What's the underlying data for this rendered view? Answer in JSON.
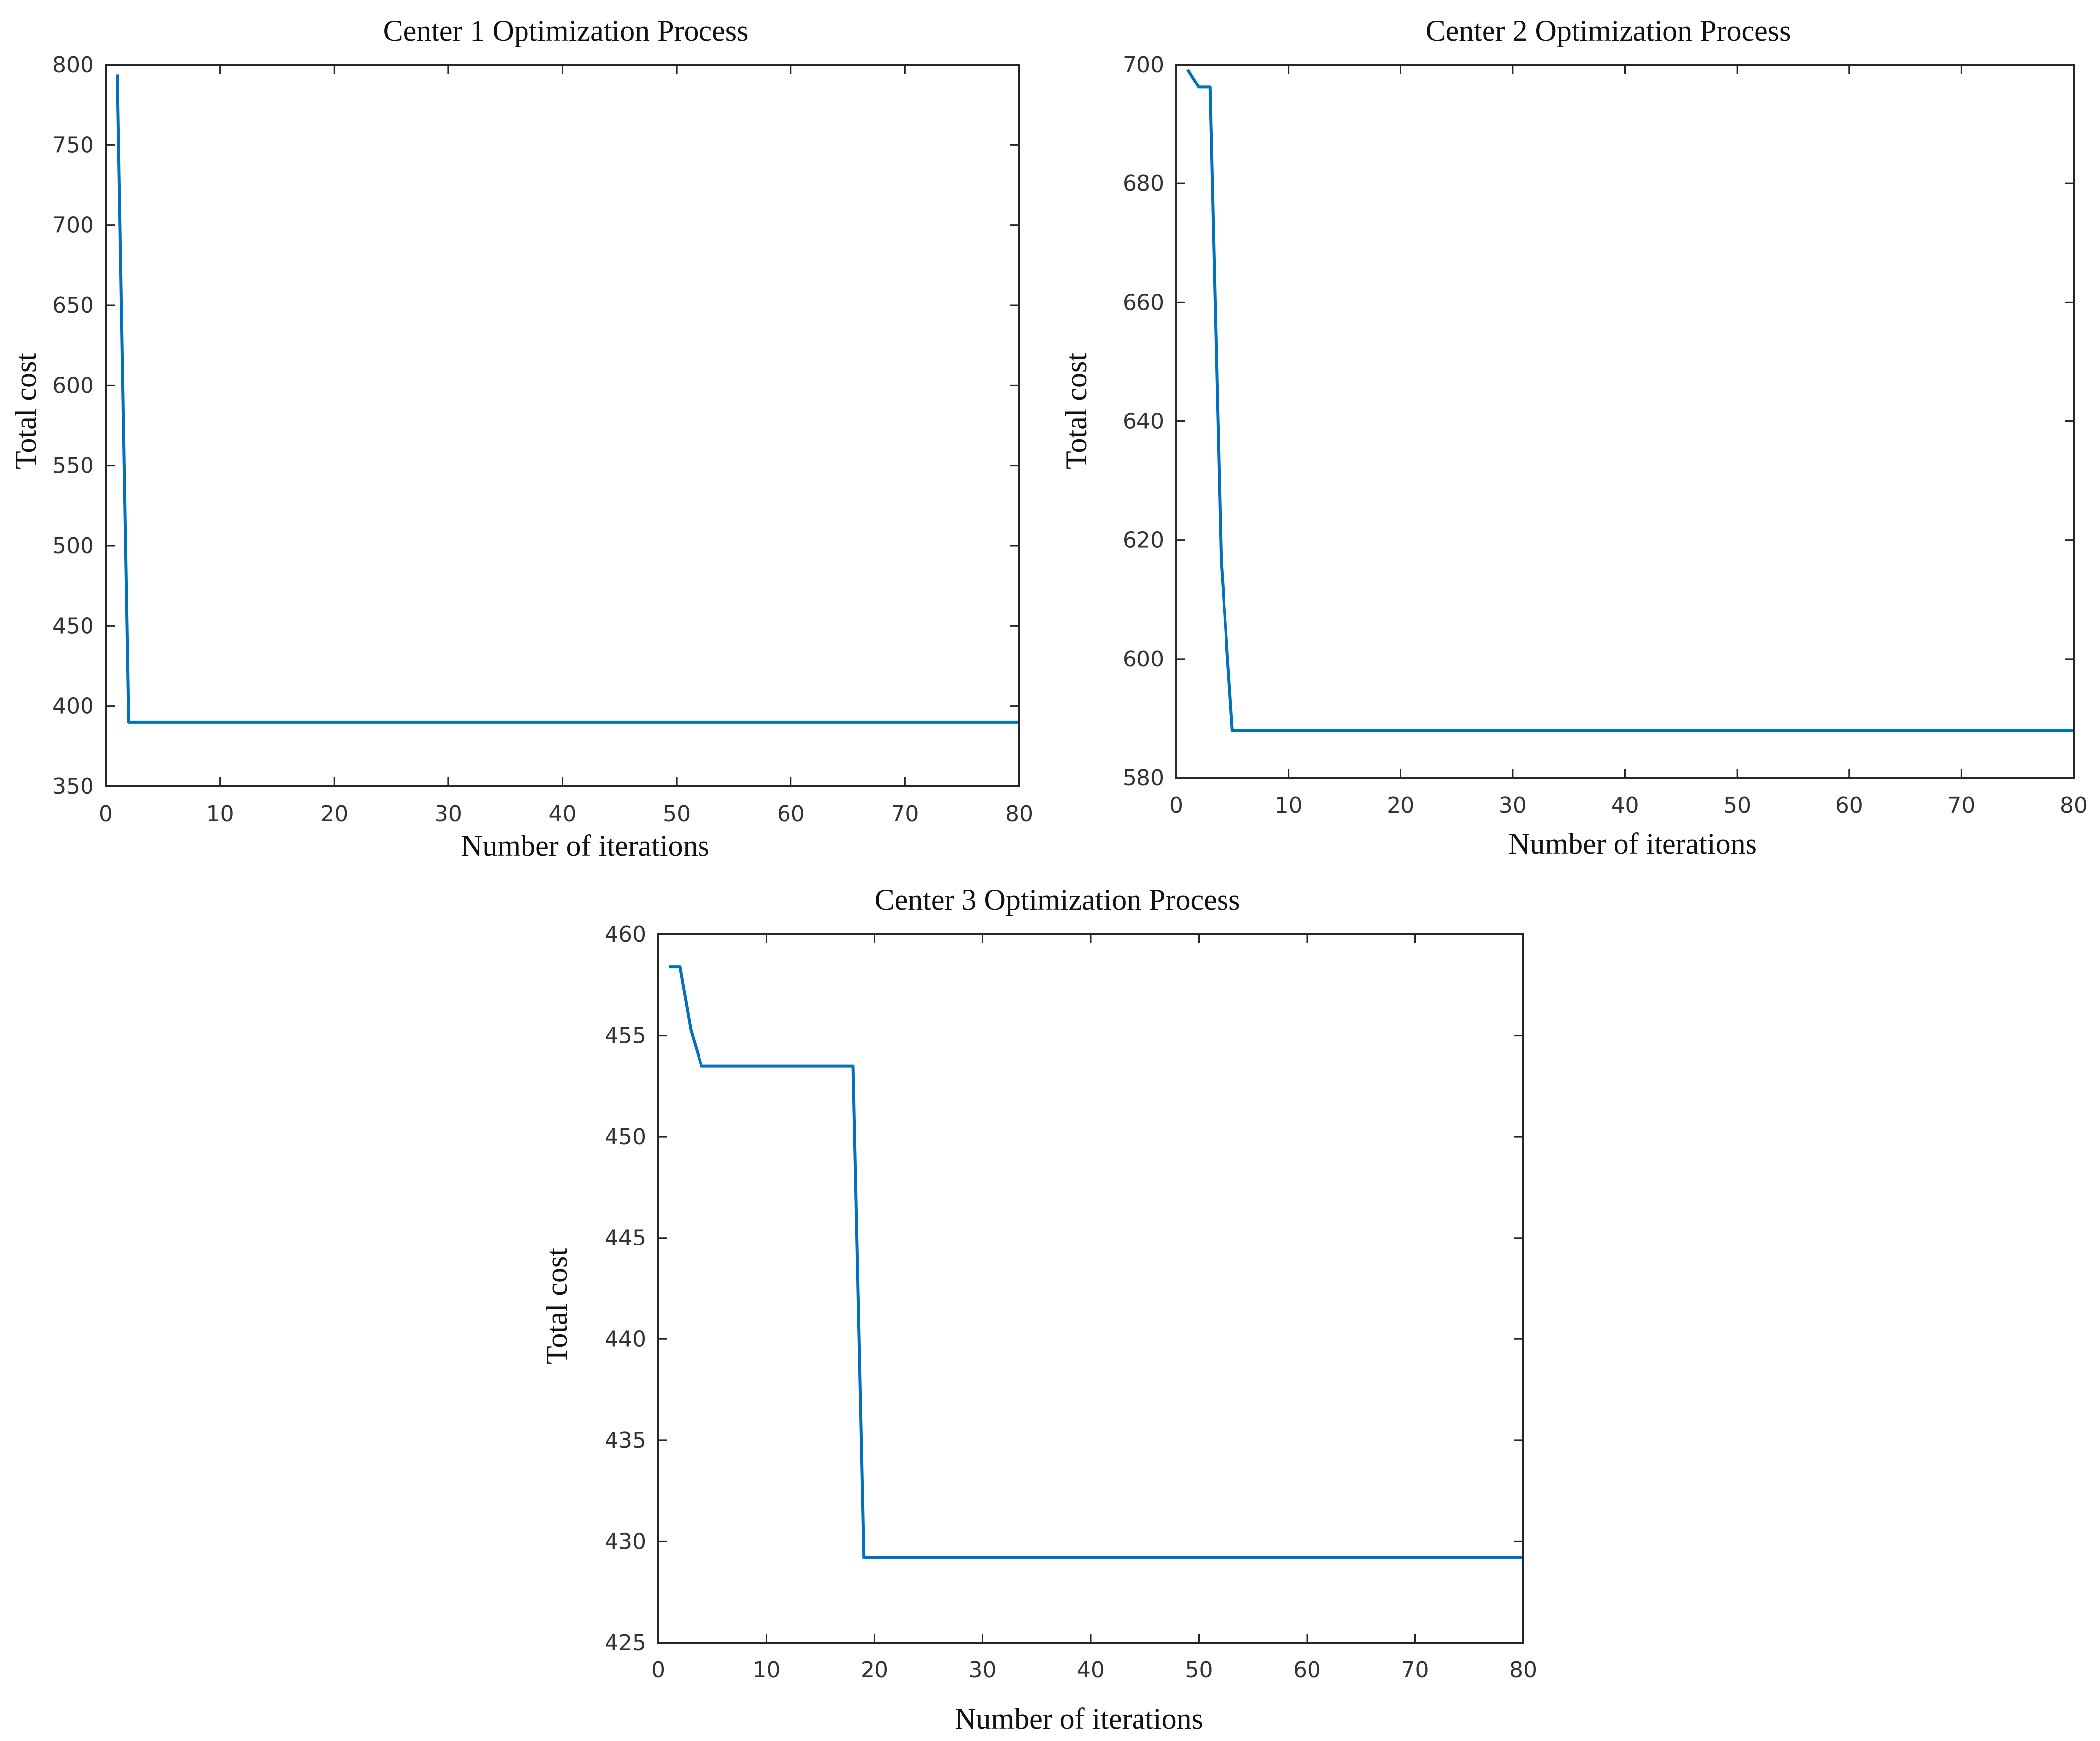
{
  "chart_data": [
    {
      "type": "line",
      "title": "Center 1 Optimization Process",
      "xlabel": "Number of iterations",
      "ylabel": "Total cost",
      "xlim": [
        0,
        80
      ],
      "ylim": [
        350,
        800
      ],
      "xticks": [
        0,
        10,
        20,
        30,
        40,
        50,
        60,
        70,
        80
      ],
      "yticks": [
        350,
        400,
        450,
        500,
        550,
        600,
        650,
        700,
        750,
        800
      ],
      "grid": false,
      "series": [
        {
          "name": "Total cost",
          "color": "#0072BD",
          "x": [
            1,
            2,
            3,
            80
          ],
          "y": [
            794,
            390,
            390,
            390
          ]
        }
      ]
    },
    {
      "type": "line",
      "title": "Center 2 Optimization Process",
      "xlabel": "Number of iterations",
      "ylabel": "Total cost",
      "xlim": [
        0,
        80
      ],
      "ylim": [
        580,
        700
      ],
      "xticks": [
        0,
        10,
        20,
        30,
        40,
        50,
        60,
        70,
        80
      ],
      "yticks": [
        580,
        600,
        620,
        640,
        660,
        680,
        700
      ],
      "grid": false,
      "series": [
        {
          "name": "Total cost",
          "color": "#0072BD",
          "x": [
            1,
            2,
            3,
            4,
            5,
            6,
            80
          ],
          "y": [
            699.2,
            696.2,
            696.2,
            616.5,
            588,
            588,
            588
          ]
        }
      ]
    },
    {
      "type": "line",
      "title": "Center 3 Optimization Process",
      "xlabel": "Number of iterations",
      "ylabel": "Total cost",
      "xlim": [
        0,
        80
      ],
      "ylim": [
        425,
        460
      ],
      "xticks": [
        0,
        10,
        20,
        30,
        40,
        50,
        60,
        70,
        80
      ],
      "yticks": [
        425,
        430,
        435,
        440,
        445,
        450,
        455,
        460
      ],
      "grid": false,
      "series": [
        {
          "name": "Total cost",
          "color": "#0072BD",
          "x": [
            1,
            2,
            3,
            4,
            18,
            19,
            80
          ],
          "y": [
            458.4,
            458.4,
            455.3,
            453.5,
            453.5,
            429.2,
            429.2
          ]
        }
      ]
    }
  ]
}
